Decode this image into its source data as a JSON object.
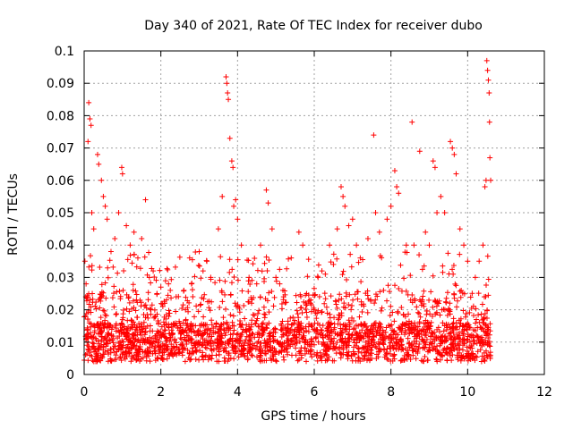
{
  "chart_data": {
    "type": "scatter",
    "title": "Day 340 of 2021, Rate Of TEC Index for receiver dubo",
    "xlabel": "GPS time / hours",
    "ylabel": "ROTI / TECUs",
    "xlim": [
      0,
      12
    ],
    "ylim": [
      0,
      0.1
    ],
    "x_ticks": [
      "0",
      "2",
      "4",
      "6",
      "8",
      "10",
      "12"
    ],
    "y_ticks": [
      "0",
      "0.01",
      "0.02",
      "0.03",
      "0.04",
      "0.05",
      "0.06",
      "0.07",
      "0.08",
      "0.09",
      "0.1"
    ],
    "grid": true,
    "marker": "+",
    "marker_color": "#ff0000",
    "x_data_range": [
      0,
      10.6
    ],
    "points": [
      [
        0.02,
        0.035
      ],
      [
        0.05,
        0.028
      ],
      [
        0.1,
        0.072
      ],
      [
        0.12,
        0.084
      ],
      [
        0.15,
        0.079
      ],
      [
        0.18,
        0.077
      ],
      [
        0.2,
        0.05
      ],
      [
        0.25,
        0.045
      ],
      [
        0.35,
        0.068
      ],
      [
        0.38,
        0.065
      ],
      [
        0.45,
        0.06
      ],
      [
        0.5,
        0.055
      ],
      [
        0.55,
        0.052
      ],
      [
        0.6,
        0.048
      ],
      [
        0.7,
        0.038
      ],
      [
        0.8,
        0.042
      ],
      [
        0.9,
        0.05
      ],
      [
        0.98,
        0.064
      ],
      [
        1.0,
        0.062
      ],
      [
        1.1,
        0.046
      ],
      [
        1.2,
        0.04
      ],
      [
        1.3,
        0.044
      ],
      [
        1.4,
        0.036
      ],
      [
        1.5,
        0.042
      ],
      [
        1.6,
        0.054
      ],
      [
        1.7,
        0.03
      ],
      [
        1.8,
        0.032
      ],
      [
        1.9,
        0.025
      ],
      [
        2.0,
        0.027
      ],
      [
        2.1,
        0.022
      ],
      [
        2.2,
        0.028
      ],
      [
        2.4,
        0.024
      ],
      [
        2.6,
        0.026
      ],
      [
        2.8,
        0.028
      ],
      [
        3.0,
        0.038
      ],
      [
        3.1,
        0.032
      ],
      [
        3.2,
        0.035
      ],
      [
        3.3,
        0.03
      ],
      [
        3.5,
        0.045
      ],
      [
        3.6,
        0.055
      ],
      [
        3.7,
        0.092
      ],
      [
        3.72,
        0.09
      ],
      [
        3.74,
        0.087
      ],
      [
        3.76,
        0.085
      ],
      [
        3.8,
        0.073
      ],
      [
        3.85,
        0.066
      ],
      [
        3.88,
        0.064
      ],
      [
        3.9,
        0.052
      ],
      [
        3.95,
        0.054
      ],
      [
        4.0,
        0.048
      ],
      [
        4.1,
        0.04
      ],
      [
        4.3,
        0.03
      ],
      [
        4.5,
        0.028
      ],
      [
        4.6,
        0.04
      ],
      [
        4.75,
        0.057
      ],
      [
        4.8,
        0.053
      ],
      [
        4.9,
        0.045
      ],
      [
        5.0,
        0.03
      ],
      [
        5.1,
        0.028
      ],
      [
        5.2,
        0.024
      ],
      [
        5.4,
        0.036
      ],
      [
        5.6,
        0.044
      ],
      [
        5.7,
        0.04
      ],
      [
        5.8,
        0.025
      ],
      [
        5.9,
        0.022
      ],
      [
        6.0,
        0.02
      ],
      [
        6.1,
        0.03
      ],
      [
        6.2,
        0.032
      ],
      [
        6.4,
        0.04
      ],
      [
        6.5,
        0.034
      ],
      [
        6.6,
        0.045
      ],
      [
        6.7,
        0.058
      ],
      [
        6.75,
        0.055
      ],
      [
        6.8,
        0.052
      ],
      [
        6.9,
        0.046
      ],
      [
        7.0,
        0.048
      ],
      [
        7.1,
        0.04
      ],
      [
        7.2,
        0.036
      ],
      [
        7.4,
        0.042
      ],
      [
        7.55,
        0.074
      ],
      [
        7.6,
        0.05
      ],
      [
        7.7,
        0.044
      ],
      [
        7.9,
        0.048
      ],
      [
        8.0,
        0.052
      ],
      [
        8.1,
        0.063
      ],
      [
        8.15,
        0.058
      ],
      [
        8.2,
        0.056
      ],
      [
        8.4,
        0.04
      ],
      [
        8.55,
        0.078
      ],
      [
        8.6,
        0.04
      ],
      [
        8.75,
        0.069
      ],
      [
        8.9,
        0.044
      ],
      [
        9.0,
        0.04
      ],
      [
        9.1,
        0.066
      ],
      [
        9.15,
        0.064
      ],
      [
        9.2,
        0.05
      ],
      [
        9.3,
        0.055
      ],
      [
        9.4,
        0.05
      ],
      [
        9.55,
        0.072
      ],
      [
        9.6,
        0.07
      ],
      [
        9.65,
        0.068
      ],
      [
        9.7,
        0.062
      ],
      [
        9.8,
        0.045
      ],
      [
        9.9,
        0.04
      ],
      [
        10.0,
        0.035
      ],
      [
        10.2,
        0.03
      ],
      [
        10.3,
        0.035
      ],
      [
        10.4,
        0.04
      ],
      [
        10.45,
        0.058
      ],
      [
        10.48,
        0.06
      ],
      [
        10.5,
        0.097
      ],
      [
        10.52,
        0.094
      ],
      [
        10.54,
        0.091
      ],
      [
        10.56,
        0.087
      ],
      [
        10.57,
        0.078
      ],
      [
        10.58,
        0.067
      ],
      [
        10.6,
        0.06
      ]
    ]
  }
}
